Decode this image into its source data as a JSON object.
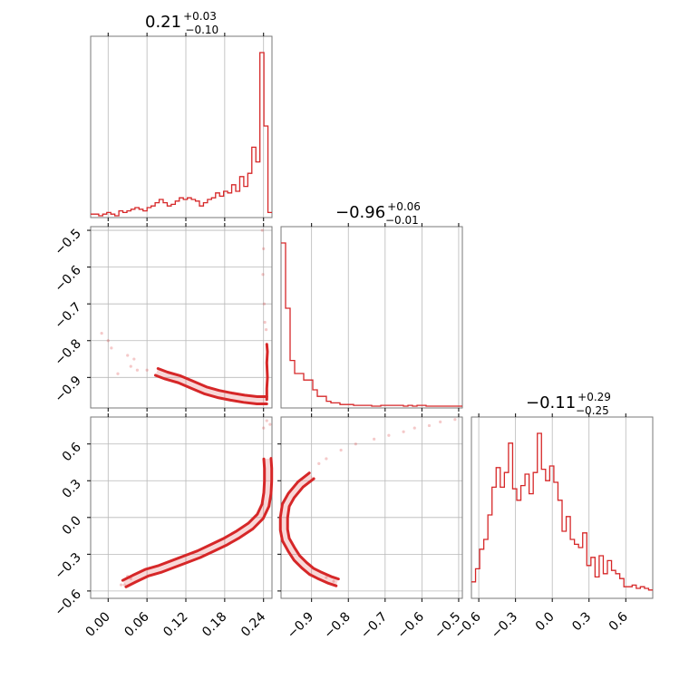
{
  "chart_data": {
    "type": "corner",
    "color": "#d62728",
    "parameters": [
      {
        "title": {
          "median": "0.21",
          "plus": "+0.03",
          "minus": "−0.10"
        },
        "ticks": [
          0.0,
          0.06,
          0.12,
          0.18,
          0.24
        ],
        "tick_labels": [
          "0.00",
          "0.06",
          "0.12",
          "0.18",
          "0.24"
        ],
        "range": [
          -0.027,
          0.253
        ]
      },
      {
        "title": {
          "median": "−0.96",
          "plus": "+0.06",
          "minus": "−0.01"
        },
        "ticks": [
          -0.9,
          -0.8,
          -0.7,
          -0.6,
          -0.5
        ],
        "tick_labels": [
          "−0.9",
          "−0.8",
          "−0.7",
          "−0.6",
          "−0.5"
        ],
        "range": [
          -0.983,
          -0.49
        ]
      },
      {
        "title": {
          "median": "−0.11",
          "plus": "+0.29",
          "minus": "−0.25"
        },
        "ticks": [
          -0.6,
          -0.3,
          0.0,
          0.3,
          0.6
        ],
        "tick_labels": [
          "−0.6",
          "−0.3",
          "0.0",
          "0.3",
          "0.6"
        ],
        "range": [
          -0.66,
          0.82
        ]
      }
    ],
    "histograms": [
      {
        "param": 0,
        "bin_edges_range": [
          -0.027,
          0.253
        ],
        "counts": [
          0.01,
          0.01,
          0.0,
          0.01,
          0.02,
          0.01,
          0.0,
          0.03,
          0.02,
          0.03,
          0.04,
          0.05,
          0.04,
          0.03,
          0.05,
          0.06,
          0.08,
          0.1,
          0.08,
          0.06,
          0.07,
          0.09,
          0.11,
          0.1,
          0.11,
          0.1,
          0.09,
          0.06,
          0.08,
          0.1,
          0.11,
          0.14,
          0.12,
          0.15,
          0.14,
          0.19,
          0.15,
          0.24,
          0.18,
          0.26,
          0.42,
          0.33,
          1.0,
          0.55,
          0.02
        ]
      },
      {
        "param": 1,
        "bin_edges_range": [
          -0.983,
          -0.49
        ],
        "counts": [
          1.0,
          0.6,
          0.28,
          0.2,
          0.2,
          0.16,
          0.16,
          0.1,
          0.06,
          0.06,
          0.03,
          0.02,
          0.02,
          0.01,
          0.01,
          0.01,
          0.005,
          0.005,
          0.005,
          0.005,
          0.0,
          0.0,
          0.005,
          0.005,
          0.005,
          0.005,
          0.005,
          0.0,
          0.005,
          0.0,
          0.005,
          0.005,
          0.0,
          0.0,
          0.0,
          0.0,
          0.0,
          0.0,
          0.0,
          0.0
        ]
      },
      {
        "param": 2,
        "bin_edges_range": [
          -0.66,
          0.82
        ],
        "counts": [
          0.09,
          0.17,
          0.29,
          0.35,
          0.5,
          0.67,
          0.79,
          0.67,
          0.76,
          0.94,
          0.66,
          0.59,
          0.68,
          0.75,
          0.63,
          0.76,
          1.0,
          0.78,
          0.71,
          0.8,
          0.7,
          0.59,
          0.4,
          0.49,
          0.35,
          0.32,
          0.3,
          0.39,
          0.19,
          0.24,
          0.12,
          0.25,
          0.14,
          0.22,
          0.16,
          0.14,
          0.11,
          0.06,
          0.06,
          0.07,
          0.05,
          0.06,
          0.05,
          0.04
        ]
      }
    ],
    "scatter_2d": [
      {
        "x_param": 0,
        "y_param": 1,
        "points": [
          [
            -0.01,
            -0.78
          ],
          [
            0.0,
            -0.8
          ],
          [
            0.005,
            -0.82
          ],
          [
            0.015,
            -0.89
          ],
          [
            0.03,
            -0.84
          ],
          [
            0.035,
            -0.87
          ],
          [
            0.04,
            -0.85
          ],
          [
            0.045,
            -0.88
          ],
          [
            0.06,
            -0.88
          ],
          [
            0.239,
            -0.62
          ],
          [
            0.24,
            -0.55
          ],
          [
            0.238,
            -0.5
          ],
          [
            0.241,
            -0.7
          ],
          [
            0.242,
            -0.75
          ],
          [
            0.244,
            -0.77
          ]
        ],
        "contour_center_line": [
          [
            0.075,
            -0.885
          ],
          [
            0.09,
            -0.895
          ],
          [
            0.11,
            -0.905
          ],
          [
            0.13,
            -0.92
          ],
          [
            0.15,
            -0.935
          ],
          [
            0.17,
            -0.945
          ],
          [
            0.19,
            -0.952
          ],
          [
            0.21,
            -0.958
          ],
          [
            0.23,
            -0.962
          ],
          [
            0.245,
            -0.962
          ]
        ],
        "contour_vertical": [
          [
            0.245,
            -0.96
          ],
          [
            0.245,
            -0.93
          ],
          [
            0.246,
            -0.9
          ],
          [
            0.245,
            -0.86
          ],
          [
            0.246,
            -0.83
          ],
          [
            0.245,
            -0.81
          ]
        ]
      },
      {
        "x_param": 0,
        "y_param": 2,
        "points": [
          [
            0.02,
            -0.55
          ],
          [
            0.025,
            -0.55
          ],
          [
            0.03,
            -0.48
          ],
          [
            0.035,
            -0.5
          ],
          [
            0.24,
            0.73
          ],
          [
            0.245,
            0.79
          ],
          [
            0.25,
            0.76
          ]
        ],
        "contour_center_line": [
          [
            0.025,
            -0.54
          ],
          [
            0.04,
            -0.5
          ],
          [
            0.06,
            -0.45
          ],
          [
            0.08,
            -0.42
          ],
          [
            0.1,
            -0.38
          ],
          [
            0.12,
            -0.34
          ],
          [
            0.14,
            -0.3
          ],
          [
            0.16,
            -0.25
          ],
          [
            0.18,
            -0.2
          ],
          [
            0.2,
            -0.14
          ],
          [
            0.22,
            -0.07
          ],
          [
            0.235,
            0.01
          ],
          [
            0.243,
            0.1
          ],
          [
            0.246,
            0.2
          ],
          [
            0.247,
            0.3
          ],
          [
            0.247,
            0.4
          ],
          [
            0.246,
            0.48
          ]
        ]
      },
      {
        "x_param": 1,
        "y_param": 2,
        "points": [
          [
            -0.78,
            0.6
          ],
          [
            -0.73,
            0.64
          ],
          [
            -0.69,
            0.67
          ],
          [
            -0.65,
            0.7
          ],
          [
            -0.62,
            0.73
          ],
          [
            -0.58,
            0.75
          ],
          [
            -0.55,
            0.78
          ],
          [
            -0.51,
            0.8
          ],
          [
            -0.82,
            0.55
          ],
          [
            -0.86,
            0.48
          ],
          [
            -0.88,
            0.44
          ],
          [
            -0.84,
            -0.52
          ],
          [
            -0.86,
            -0.49
          ]
        ],
        "contour_center_line": [
          [
            -0.9,
            0.34
          ],
          [
            -0.93,
            0.27
          ],
          [
            -0.955,
            0.18
          ],
          [
            -0.97,
            0.1
          ],
          [
            -0.975,
            0.0
          ],
          [
            -0.975,
            -0.1
          ],
          [
            -0.97,
            -0.18
          ],
          [
            -0.955,
            -0.26
          ],
          [
            -0.94,
            -0.33
          ],
          [
            -0.92,
            -0.39
          ],
          [
            -0.9,
            -0.44
          ],
          [
            -0.88,
            -0.47
          ],
          [
            -0.85,
            -0.51
          ],
          [
            -0.83,
            -0.53
          ]
        ]
      }
    ],
    "grid": true
  }
}
